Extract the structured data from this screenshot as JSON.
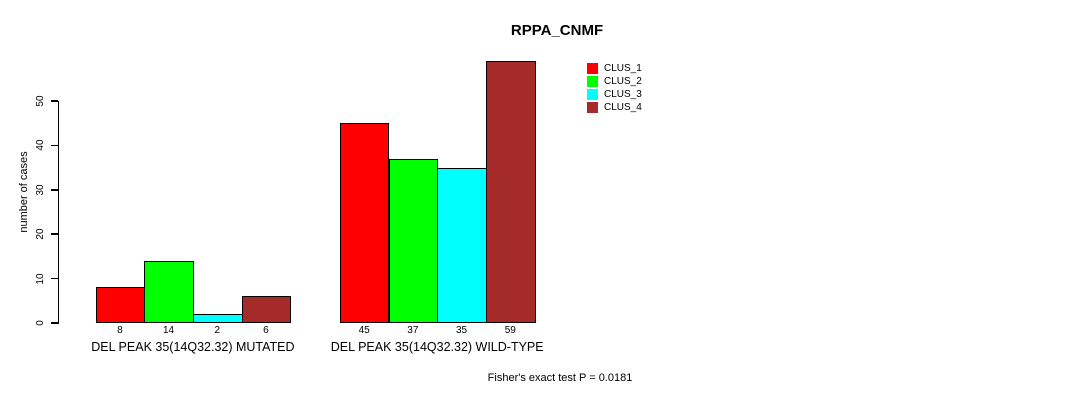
{
  "chart_data": {
    "type": "bar",
    "title": "RPPA_CNMF",
    "ylabel": "number of cases",
    "xlabel": "",
    "ylim": [
      0,
      59
    ],
    "yticks": [
      0,
      10,
      20,
      30,
      40,
      50
    ],
    "grid": false,
    "legend_position": "top-right-inside",
    "categories": [
      "DEL PEAK 35(14Q32.32) MUTATED",
      "DEL PEAK 35(14Q32.32) WILD-TYPE"
    ],
    "series": [
      {
        "name": "CLUS_1",
        "color": "#FF0000",
        "values": [
          8,
          45
        ]
      },
      {
        "name": "CLUS_2",
        "color": "#00FF00",
        "values": [
          14,
          37
        ]
      },
      {
        "name": "CLUS_3",
        "color": "#00FFFF",
        "values": [
          2,
          35
        ]
      },
      {
        "name": "CLUS_4",
        "color": "#A52A2A",
        "values": [
          6,
          59
        ]
      }
    ],
    "bar_value_labels": [
      [
        "8",
        "14",
        "2",
        "6"
      ],
      [
        "45",
        "37",
        "35",
        "59"
      ]
    ],
    "annotation": "Fisher's exact test P = 0.0181",
    "colors": {
      "axis": "#000000",
      "text": "#000000",
      "background": "#FFFFFF"
    }
  }
}
